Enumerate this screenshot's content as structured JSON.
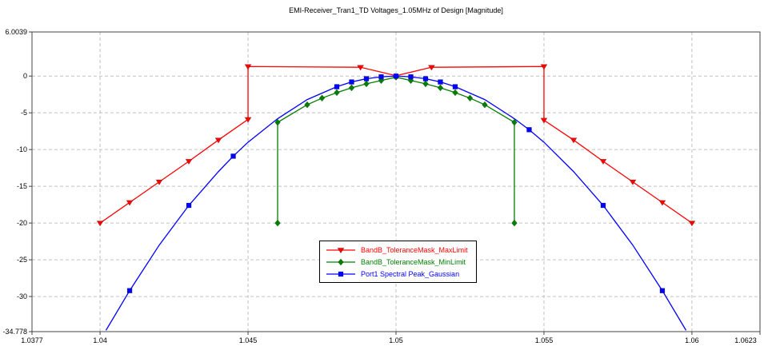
{
  "chart_data": {
    "type": "line",
    "title": "EMI-Receiver_Tran1_TD Voltages_1.05MHz of Design [Magnitude]",
    "xlabel": "",
    "ylabel": "",
    "xlim": [
      1.0377,
      1.0623
    ],
    "ylim": [
      -34.778,
      6.0039
    ],
    "x_ticks": [
      {
        "value": 1.0377,
        "label": "1.0377"
      },
      {
        "value": 1.04,
        "label": "1.04"
      },
      {
        "value": 1.045,
        "label": "1.045"
      },
      {
        "value": 1.05,
        "label": "1.05"
      },
      {
        "value": 1.055,
        "label": "1.055"
      },
      {
        "value": 1.06,
        "label": "1.06"
      },
      {
        "value": 1.0623,
        "label": "1.0623"
      }
    ],
    "y_ticks": [
      {
        "value": 6.0039,
        "label": "6.0039"
      },
      {
        "value": 0,
        "label": "0"
      },
      {
        "value": -5,
        "label": "-5"
      },
      {
        "value": -10,
        "label": "-10"
      },
      {
        "value": -15,
        "label": "-15"
      },
      {
        "value": -20,
        "label": "-20"
      },
      {
        "value": -25,
        "label": "-25"
      },
      {
        "value": -30,
        "label": "-30"
      },
      {
        "value": -34.778,
        "label": "-34.778"
      }
    ],
    "grid": {
      "x_values": [
        1.04,
        1.045,
        1.05,
        1.055,
        1.06
      ],
      "y_values": [
        0,
        -5,
        -10,
        -15,
        -20,
        -25,
        -30
      ],
      "color": "#c0c0c0",
      "dash": "4,3",
      "on": true
    },
    "legend_position": "bottom-center",
    "series": [
      {
        "name": "BandB_ToleranceMask_MaxLimit",
        "color": "#ff0000",
        "marker": "triangle-down",
        "line_points": [
          [
            1.04,
            -20
          ],
          [
            1.041,
            -17.2
          ],
          [
            1.042,
            -14.4
          ],
          [
            1.043,
            -11.6
          ],
          [
            1.044,
            -8.7
          ],
          [
            1.045,
            -5.9
          ],
          [
            1.045,
            1.3
          ],
          [
            1.0488,
            1.2
          ],
          [
            1.05,
            0.05
          ],
          [
            1.0512,
            1.2
          ],
          [
            1.055,
            1.3
          ],
          [
            1.055,
            -6.0
          ],
          [
            1.056,
            -8.7
          ],
          [
            1.057,
            -11.6
          ],
          [
            1.058,
            -14.4
          ],
          [
            1.059,
            -17.2
          ],
          [
            1.06,
            -20
          ]
        ],
        "marker_points": [
          [
            1.04,
            -20
          ],
          [
            1.041,
            -17.2
          ],
          [
            1.042,
            -14.4
          ],
          [
            1.043,
            -11.6
          ],
          [
            1.044,
            -8.7
          ],
          [
            1.045,
            -5.9
          ],
          [
            1.045,
            1.3
          ],
          [
            1.0488,
            1.2
          ],
          [
            1.0512,
            1.2
          ],
          [
            1.055,
            1.3
          ],
          [
            1.055,
            -6.0
          ],
          [
            1.056,
            -8.7
          ],
          [
            1.057,
            -11.6
          ],
          [
            1.058,
            -14.4
          ],
          [
            1.059,
            -17.2
          ],
          [
            1.06,
            -20
          ]
        ]
      },
      {
        "name": "BandB_ToleranceMask_MinLimit",
        "color": "#008000",
        "marker": "diamond",
        "line_points": [
          [
            1.046,
            -20
          ],
          [
            1.046,
            -6.3
          ],
          [
            1.047,
            -3.9
          ],
          [
            1.0475,
            -3.0
          ],
          [
            1.048,
            -2.25
          ],
          [
            1.0485,
            -1.6
          ],
          [
            1.049,
            -1.05
          ],
          [
            1.0495,
            -0.6
          ],
          [
            1.05,
            -0.15
          ],
          [
            1.0505,
            -0.6
          ],
          [
            1.051,
            -1.05
          ],
          [
            1.0515,
            -1.6
          ],
          [
            1.052,
            -2.25
          ],
          [
            1.0525,
            -3.0
          ],
          [
            1.053,
            -3.9
          ],
          [
            1.054,
            -6.3
          ],
          [
            1.054,
            -20
          ]
        ],
        "marker_points": [
          [
            1.046,
            -20
          ],
          [
            1.046,
            -6.3
          ],
          [
            1.047,
            -3.9
          ],
          [
            1.0475,
            -3.0
          ],
          [
            1.048,
            -2.25
          ],
          [
            1.0485,
            -1.6
          ],
          [
            1.049,
            -1.05
          ],
          [
            1.0495,
            -0.6
          ],
          [
            1.05,
            -0.15
          ],
          [
            1.0505,
            -0.6
          ],
          [
            1.051,
            -1.05
          ],
          [
            1.0515,
            -1.6
          ],
          [
            1.052,
            -2.25
          ],
          [
            1.0525,
            -3.0
          ],
          [
            1.053,
            -3.9
          ],
          [
            1.054,
            -6.3
          ],
          [
            1.054,
            -20
          ]
        ]
      },
      {
        "name": "Port1 Spectral Peak_Gaussian",
        "color": "#0000ff",
        "marker": "square",
        "line_points": [
          [
            1.0402,
            -34.6
          ],
          [
            1.041,
            -29.2
          ],
          [
            1.042,
            -23.0
          ],
          [
            1.043,
            -17.6
          ],
          [
            1.044,
            -13.0
          ],
          [
            1.0445,
            -10.9
          ],
          [
            1.045,
            -9.0
          ],
          [
            1.046,
            -5.8
          ],
          [
            1.047,
            -3.2
          ],
          [
            1.048,
            -1.45
          ],
          [
            1.0485,
            -0.8
          ],
          [
            1.049,
            -0.36
          ],
          [
            1.0495,
            -0.1
          ],
          [
            1.05,
            0
          ],
          [
            1.0505,
            -0.1
          ],
          [
            1.051,
            -0.36
          ],
          [
            1.0515,
            -0.8
          ],
          [
            1.052,
            -1.45
          ],
          [
            1.053,
            -3.2
          ],
          [
            1.054,
            -5.8
          ],
          [
            1.0545,
            -7.3
          ],
          [
            1.055,
            -9.0
          ],
          [
            1.056,
            -13.0
          ],
          [
            1.057,
            -17.6
          ],
          [
            1.058,
            -23.0
          ],
          [
            1.059,
            -29.2
          ],
          [
            1.0598,
            -34.6
          ]
        ],
        "marker_points": [
          [
            1.041,
            -29.2
          ],
          [
            1.043,
            -17.6
          ],
          [
            1.0445,
            -10.9
          ],
          [
            1.048,
            -1.45
          ],
          [
            1.0485,
            -0.8
          ],
          [
            1.049,
            -0.36
          ],
          [
            1.0495,
            -0.1
          ],
          [
            1.05,
            0
          ],
          [
            1.0505,
            -0.1
          ],
          [
            1.051,
            -0.36
          ],
          [
            1.0515,
            -0.8
          ],
          [
            1.052,
            -1.45
          ],
          [
            1.0545,
            -7.3
          ],
          [
            1.057,
            -17.6
          ],
          [
            1.059,
            -29.2
          ]
        ]
      }
    ]
  }
}
